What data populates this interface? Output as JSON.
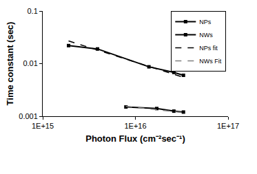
{
  "chart_data": {
    "type": "line",
    "x_label": "Photon Flux (cm⁻²sec⁻¹)",
    "y_label": "Time constant (sec)",
    "log": true,
    "grid": false,
    "legend": "top-right",
    "xlim": [
      1000000000000000.0,
      1e+17
    ],
    "xticks": [
      {
        "value": 1000000000000000.0,
        "label": "1E+15"
      },
      {
        "value": 1e+16,
        "label": "1E+16"
      },
      {
        "value": 1e+17,
        "label": "1E+17"
      }
    ],
    "ylim": [
      0.001,
      0.1
    ],
    "yticks": [
      0.001,
      0.01,
      0.1
    ],
    "series": [
      {
        "name": "NPs",
        "color": "#000000",
        "marker": "square",
        "line_style": "solid",
        "x": [
          1900000000000000.0,
          3900000000000000.0,
          1.4e+16,
          2.6e+16,
          3.3e+16
        ],
        "values": [
          0.022,
          0.019,
          0.0087,
          0.0068,
          0.006
        ]
      },
      {
        "name": "NWs",
        "color": "#000000",
        "marker": "square",
        "line_style": "solid",
        "x": [
          7900000000000000.0,
          1.7e+16,
          2.6e+16,
          3.3e+16
        ],
        "values": [
          0.0015,
          0.0014,
          0.00125,
          0.0012
        ]
      },
      {
        "name": "NPs fit",
        "color": "#000000",
        "marker": "none",
        "line_style": "dash",
        "x": [
          1900000000000000.0,
          3.3e+16
        ],
        "values": [
          0.027,
          0.0055
        ]
      },
      {
        "name": "NWs Fit",
        "color": "#808080",
        "marker": "none",
        "line_style": "dash",
        "x": [
          7900000000000000.0,
          3.3e+16
        ],
        "values": [
          0.00155,
          0.00117
        ]
      }
    ]
  }
}
